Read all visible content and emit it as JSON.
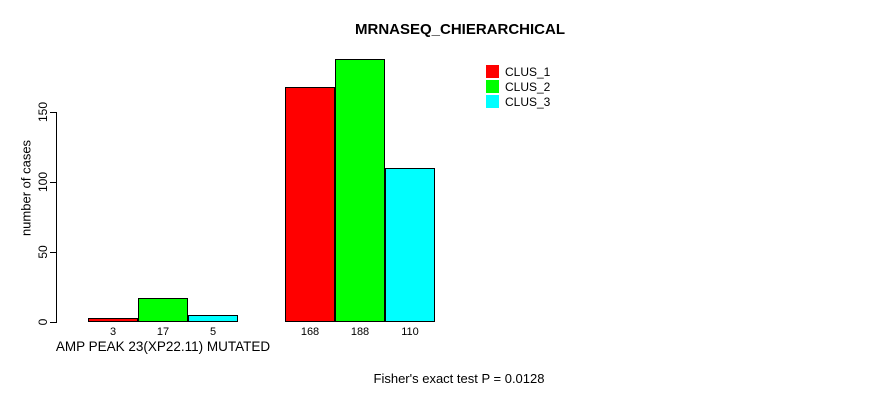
{
  "chart_data": {
    "type": "bar",
    "title": "MRNASEQ_CHIERARCHICAL",
    "ylabel": "number of cases",
    "xlabel": "",
    "yticks": [
      0,
      50,
      100,
      150
    ],
    "ylim": [
      0,
      195
    ],
    "grid": false,
    "legend_position": "top-right",
    "categories": [
      "AMP PEAK 23(XP22.11) MUTATED",
      ""
    ],
    "series": [
      {
        "name": "CLUS_1",
        "color": "#ff0000",
        "values": [
          3,
          168
        ]
      },
      {
        "name": "CLUS_2",
        "color": "#00ff00",
        "values": [
          17,
          188
        ]
      },
      {
        "name": "CLUS_3",
        "color": "#00ffff",
        "values": [
          5,
          110
        ]
      }
    ],
    "bar_value_labels": [
      [
        "3",
        "17",
        "5"
      ],
      [
        "168",
        "188",
        "110"
      ]
    ],
    "annotation": "Fisher's exact test P = 0.0128",
    "axis_color": "#000000",
    "bar_border_color": "#000000",
    "background_color": "#ffffff"
  }
}
